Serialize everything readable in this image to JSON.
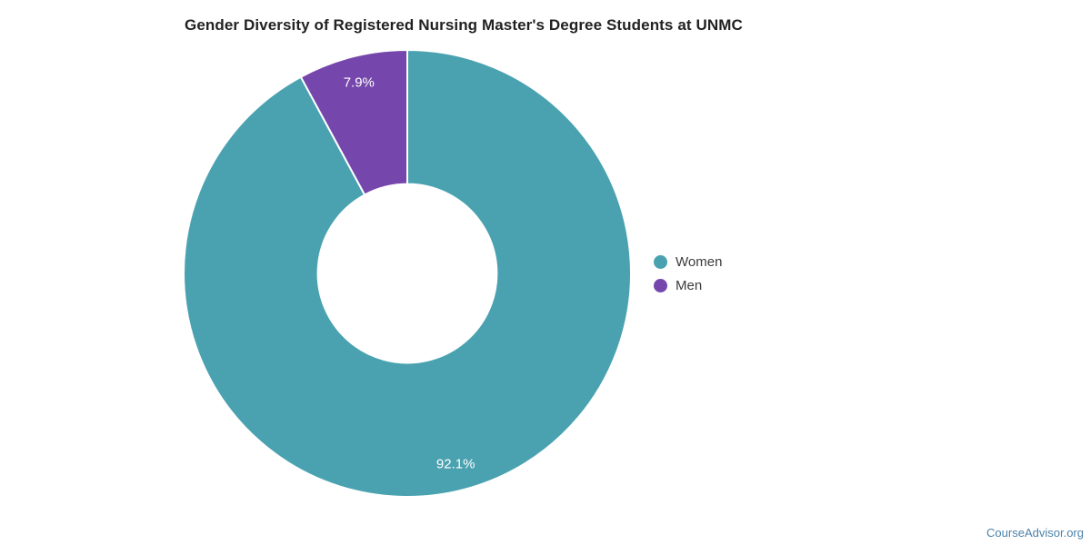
{
  "title": "Gender Diversity of Registered Nursing Master's Degree Students at UNMC",
  "attribution": {
    "label": "CourseAdvisor.org",
    "color": "#4c83a9"
  },
  "colors": {
    "background": "#ffffff",
    "title_text": "#222222",
    "legend_text": "#3b3b3b",
    "slice_label_text": "#ffffff",
    "slice_divider": "#ffffff"
  },
  "chart_data": {
    "type": "pie",
    "subtype": "donut",
    "title": "Gender Diversity of Registered Nursing Master's Degree Students at UNMC",
    "direction": "clockwise",
    "start_angle_deg": 0,
    "inner_radius_ratio": 0.4,
    "legend_position": "right",
    "units": "percent",
    "series": [
      {
        "name": "Women",
        "value": 92.1,
        "label": "92.1%",
        "color": "#4aa2b1"
      },
      {
        "name": "Men",
        "value": 7.9,
        "label": "7.9%",
        "color": "#7547ac"
      }
    ]
  }
}
